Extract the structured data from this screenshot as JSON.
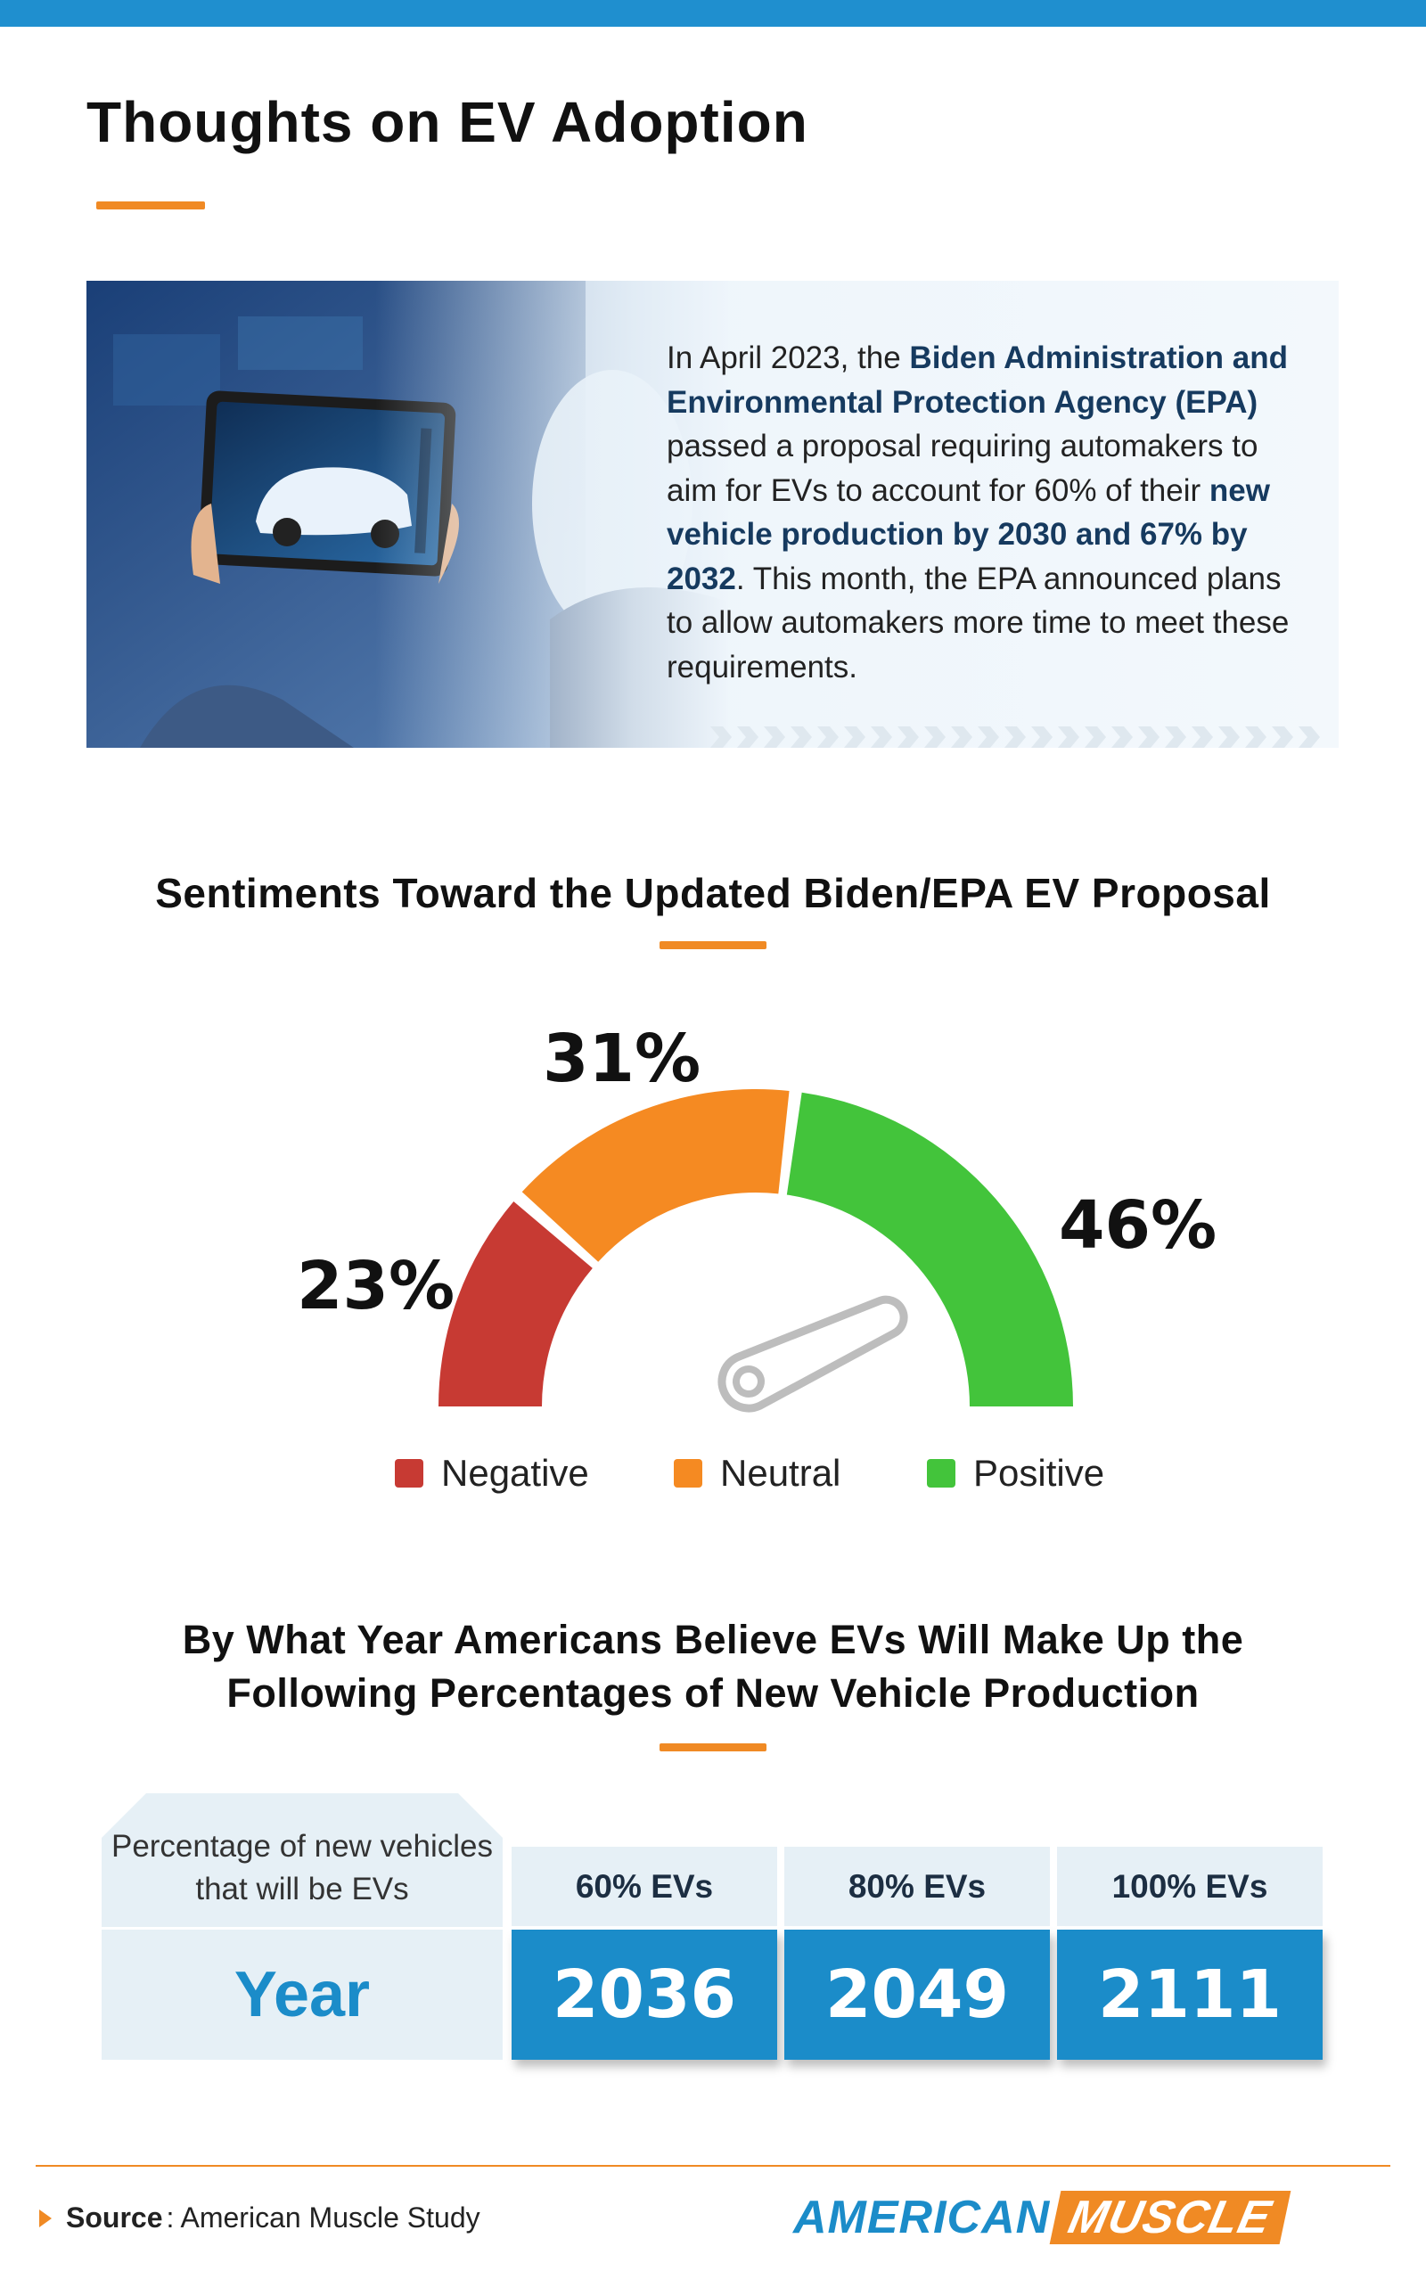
{
  "header": {
    "title": "Thoughts on EV Adoption"
  },
  "intro": {
    "parts": [
      {
        "text": "In April 2023, the ",
        "bold": false
      },
      {
        "text": "Biden Administration and Environmental Protection Agency (EPA)",
        "bold": true
      },
      {
        "text": " passed a proposal requiring automakers to aim for EVs to account for 60% of their ",
        "bold": false
      },
      {
        "text": "new vehicle production by 2030 and 67% by 2032",
        "bold": true
      },
      {
        "text": ". This month, the EPA announced plans to allow automakers more time to meet these requirements.",
        "bold": false
      }
    ]
  },
  "sentiment": {
    "title": "Sentiments Toward the Updated Biden/EPA EV Proposal"
  },
  "year_section": {
    "title_line1": "By What Year Americans Believe EVs Will Make Up the",
    "title_line2": "Following Percentages of New Vehicle Production"
  },
  "footer": {
    "source_label": "Source",
    "source_text": ": American Muscle Study",
    "brand_part1": "AMERICAN",
    "brand_part2": "MUSCLE"
  },
  "colors": {
    "negative": "#c73a33",
    "neutral": "#f58a22",
    "positive": "#43c43b",
    "accent": "#f08a24",
    "blue": "#1b8cc9"
  },
  "chart_data": [
    {
      "type": "pie",
      "style": "semicircle-gauge",
      "title": "Sentiments Toward the Updated Biden/EPA EV Proposal",
      "categories": [
        "Negative",
        "Neutral",
        "Positive"
      ],
      "values": [
        23,
        31,
        46
      ],
      "labels": [
        "23%",
        "31%",
        "46%"
      ],
      "unit": "%",
      "legend": "bottom"
    },
    {
      "type": "table",
      "title": "By What Year Americans Believe EVs Will Make Up the Following Percentages of New Vehicle Production",
      "header_label": "Percentage of new vehicles that will be EVs",
      "columns": [
        "60% EVs",
        "80% EVs",
        "100% EVs"
      ],
      "row_label": "Year",
      "values": [
        "2036",
        "2049",
        "2111"
      ]
    }
  ]
}
